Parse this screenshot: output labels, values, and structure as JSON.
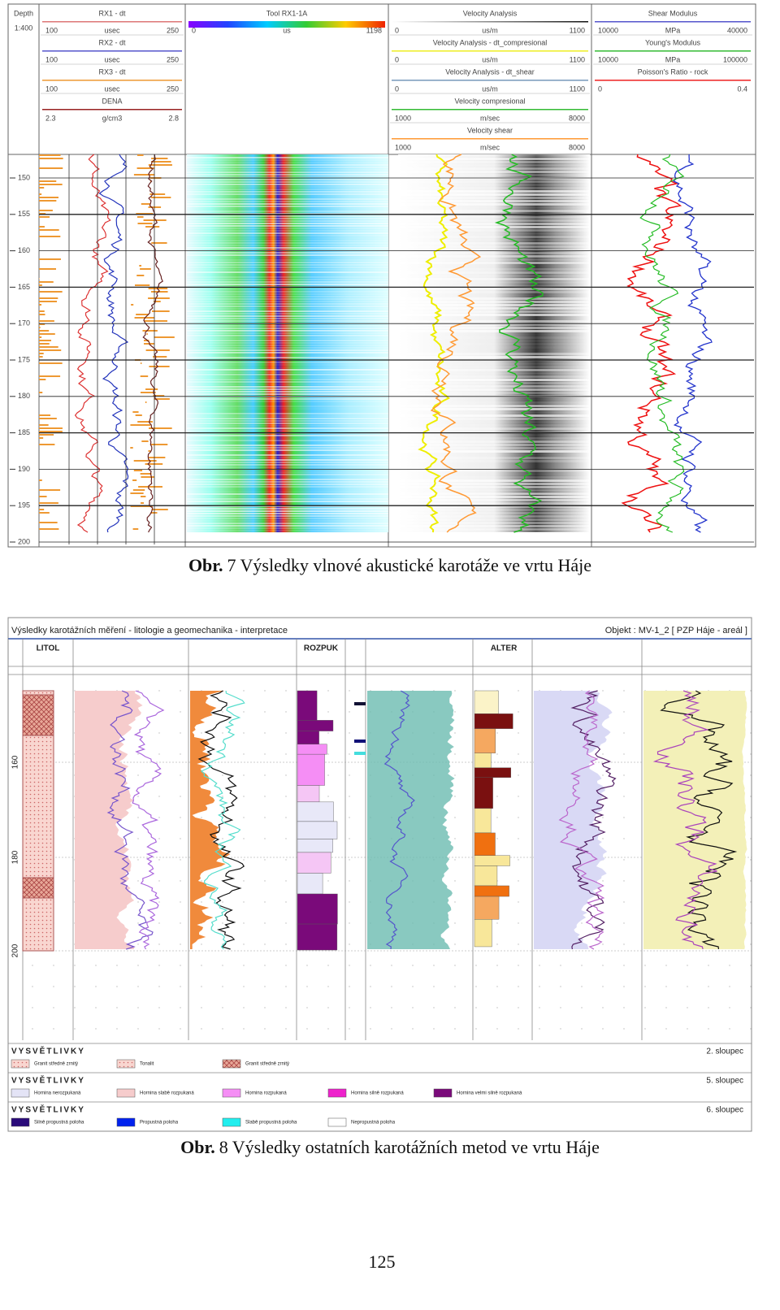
{
  "figure_7": {
    "depth_header": {
      "title": "Depth",
      "scale": "1:400"
    },
    "track_1": [
      {
        "name": "RX1 - dt",
        "min": "100",
        "unit": "usec",
        "max": "250"
      },
      {
        "name": "RX2 - dt",
        "min": "100",
        "unit": "usec",
        "max": "250"
      },
      {
        "name": "RX3 - dt",
        "min": "100",
        "unit": "usec",
        "max": "250"
      },
      {
        "name": "DENA",
        "min": "2.3",
        "unit": "g/cm3",
        "max": "2.8"
      }
    ],
    "track_2": [
      {
        "name": "Tool RX1-1A",
        "min": "0",
        "unit": "us",
        "max": "1198"
      }
    ],
    "track_3": [
      {
        "name": "Velocity Analysis",
        "min": "0",
        "unit": "us/m",
        "max": "1100"
      },
      {
        "name": "Velocity Analysis - dt_compresional",
        "min": "0",
        "unit": "us/m",
        "max": "1100"
      },
      {
        "name": "Velocity Analysis - dt_shear",
        "min": "0",
        "unit": "us/m",
        "max": "1100"
      },
      {
        "name": "Velocity compresional",
        "min": "1000",
        "unit": "m/sec",
        "max": "8000"
      },
      {
        "name": "Velocity shear",
        "min": "1000",
        "unit": "m/sec",
        "max": "8000"
      }
    ],
    "track_4": [
      {
        "name": "Shear Modulus",
        "min": "10000",
        "unit": "MPa",
        "max": "40000"
      },
      {
        "name": "Young's Modulus",
        "min": "10000",
        "unit": "MPa",
        "max": "100000"
      },
      {
        "name": "Poisson's Ratio - rock",
        "min": "0",
        "max": "0.4"
      }
    ],
    "depth_ticks": [
      150,
      155,
      160,
      165,
      170,
      175,
      180,
      185,
      190,
      195,
      200
    ],
    "caption": {
      "prefix": "Obr.",
      "number": "7",
      "text": "Výsledky vlnové akustické karotáže ve vrtu Háje"
    }
  },
  "figure_8": {
    "title": "Výsledky karotážních měření - litologie a geomechanika - interpretace",
    "object": "Objekt : MV-1_2 [ PZP Háje - areál ]",
    "column_headers": [
      "LITOL",
      "ROZPUK",
      "ALTER"
    ],
    "depth_labels": [
      "160",
      "180",
      "200"
    ],
    "legends": [
      {
        "heading": "VYSVĚTLIVKY",
        "column": "2. sloupec",
        "items": [
          "Granit středně zrnitý",
          "Tonalit",
          "Granit středně zrnitý"
        ]
      },
      {
        "heading": "VYSVĚTLIVKY",
        "column": "5. sloupec",
        "items": [
          "Hornina nerozpukaná",
          "Hornina slabě rozpukaná",
          "Hornina rozpukaná",
          "Hornina silně rozpukaná",
          "Hornina velmi silně rozpukaná"
        ]
      },
      {
        "heading": "VYSVĚTLIVKY",
        "column": "6. sloupec",
        "items": [
          "Silně propustná poloha",
          "Propustná poloha",
          "Slabě propustná poloha",
          "Nepropustná poloha"
        ]
      }
    ],
    "caption": {
      "prefix": "Obr.",
      "number": "8",
      "text": "Výsledky ostatních karotážních metod ve vrtu Háje"
    }
  },
  "page_number": "125"
}
